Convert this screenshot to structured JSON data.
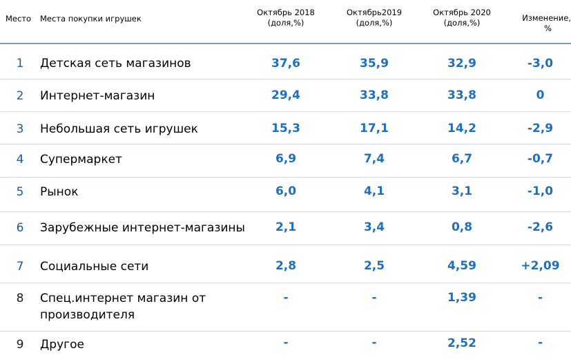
{
  "header": {
    "rank": "Место",
    "place": "Места покупки игрушек",
    "oct2018_line1": "Октябрь 2018",
    "oct2018_line2": "(доля,%)",
    "oct2019_line1": "Октябрь2019",
    "oct2019_line2": "(доля,%)",
    "oct2020_line1": "Октябрь 2020",
    "oct2020_line2": "(доля,%)",
    "change_line1": "Изменение,",
    "change_line2": "%"
  },
  "rows": [
    {
      "rank": "1",
      "name": "Детская сеть магазинов",
      "v2018": "37,6",
      "v2019": "35,9",
      "v2020": "32,9",
      "change": "-3,0"
    },
    {
      "rank": "2",
      "name": "Интернет-магазин",
      "v2018": "29,4",
      "v2019": "33,8",
      "v2020": "33,8",
      "change": "0"
    },
    {
      "rank": "3",
      "name": "Небольшая сеть игрушек",
      "v2018": "15,3",
      "v2019": "17,1",
      "v2020": "14,2",
      "change": "-2,9"
    },
    {
      "rank": "4",
      "name": "Супермаркет",
      "v2018": "6,9",
      "v2019": "7,4",
      "v2020": "6,7",
      "change": "-0,7"
    },
    {
      "rank": "5",
      "name": "Рынок",
      "v2018": "6,0",
      "v2019": "4,1",
      "v2020": "3,1",
      "change": "-1,0"
    },
    {
      "rank": "6",
      "name": "Зарубежные интернет-магазины",
      "v2018": "2,1",
      "v2019": "3,4",
      "v2020": "0,8",
      "change": "-2,6"
    },
    {
      "rank": "7",
      "name": "Социальные сети",
      "v2018": "2,8",
      "v2019": "2,5",
      "v2020": "4,59",
      "change": "+2,09"
    },
    {
      "rank": "8",
      "name_line1": "Спец.интернет магазин от",
      "name_line2": "производителя",
      "v2018": "-",
      "v2019": "-",
      "v2020": "1,39",
      "change": "-"
    },
    {
      "rank": "9",
      "name": "Другое",
      "v2018": "-",
      "v2019": "-",
      "v2020": "2,52",
      "change": "-"
    }
  ]
}
